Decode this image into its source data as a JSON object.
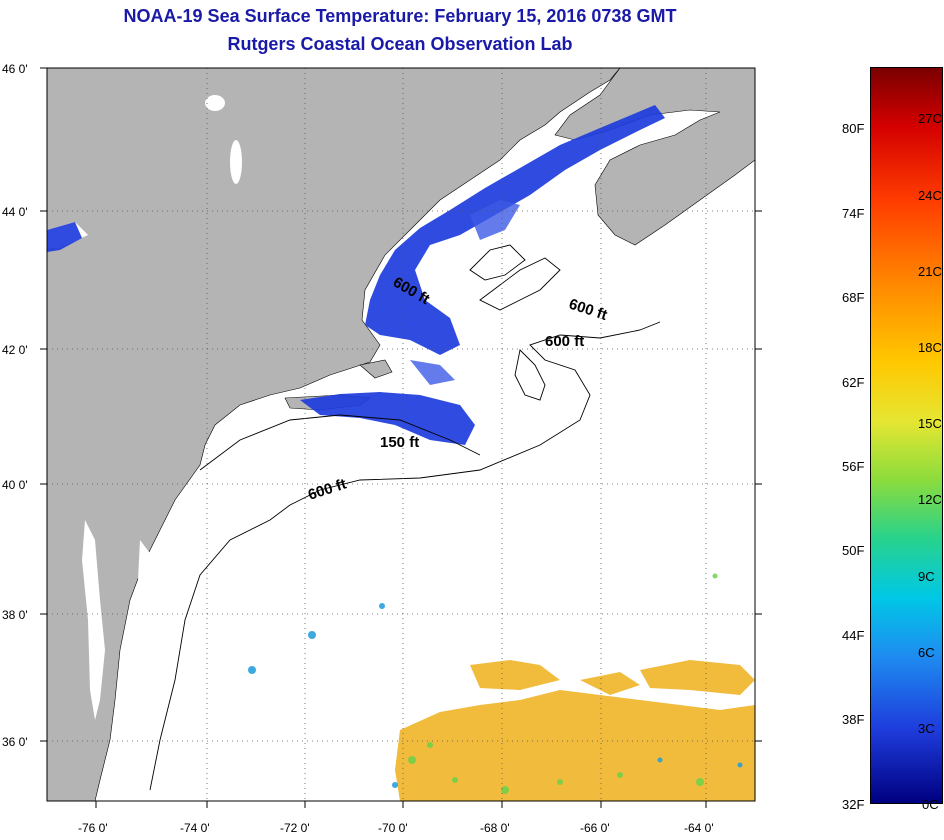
{
  "title": {
    "line1": "NOAA-19 Sea Surface Temperature:  February 15, 2016 0738 GMT",
    "line2": "Rutgers Coastal Ocean Observation Lab"
  },
  "axes": {
    "lat_labels": [
      "46 0'",
      "44 0'",
      "42 0'",
      "40 0'",
      "38 0'",
      "36 0'"
    ],
    "lon_labels": [
      "-76 0'",
      "-74 0'",
      "-72 0'",
      "-70 0'",
      "-68 0'",
      "-66 0'",
      "-64 0'"
    ]
  },
  "contours": [
    "600 ft",
    "600 ft",
    "600 ft",
    "150 ft",
    "600 ft"
  ],
  "colorbar": {
    "fahrenheit": [
      "80F",
      "74F",
      "68F",
      "62F",
      "56F",
      "50F",
      "44F",
      "38F",
      "32F"
    ],
    "celsius": [
      "27C",
      "24C",
      "21C",
      "18C",
      "15C",
      "12C",
      "9C",
      "6C",
      "3C",
      "0C"
    ]
  },
  "colors": {
    "land": "#b4b4b4",
    "title": "#1a1aa8",
    "cold_water": "#1e3cdc",
    "warm_water": "#f0b428"
  }
}
